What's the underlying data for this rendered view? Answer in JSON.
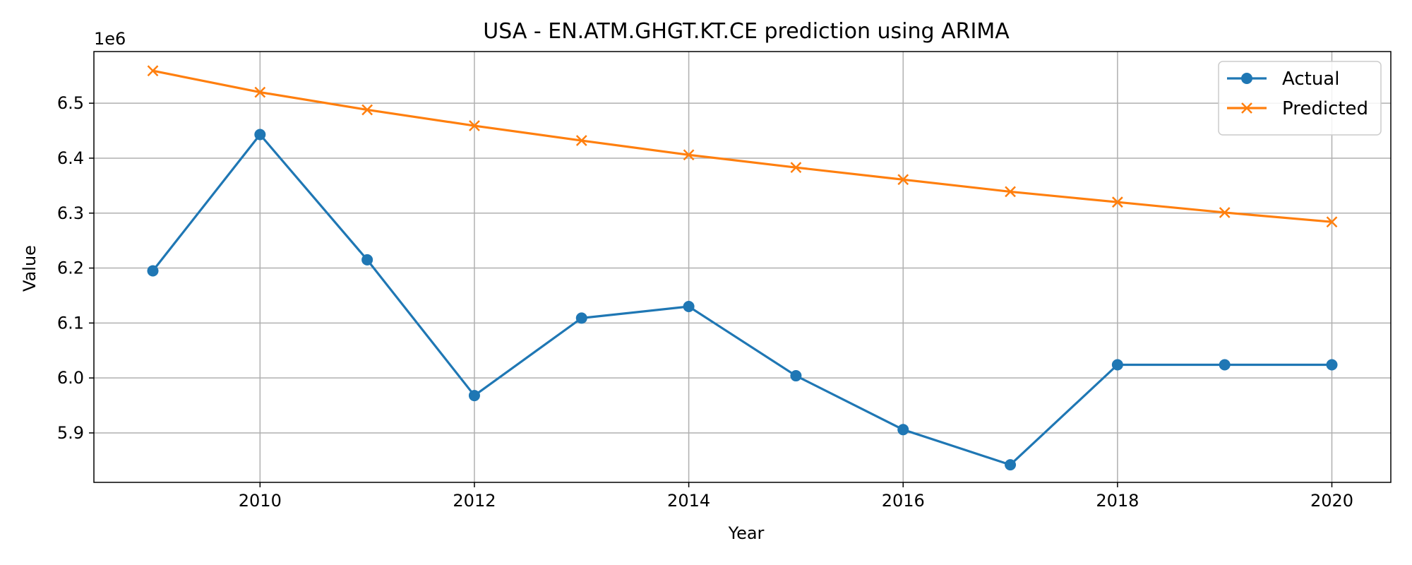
{
  "chart_data": {
    "type": "line",
    "title": "USA - EN.ATM.GHGT.KT.CE prediction using ARIMA",
    "xlabel": "Year",
    "ylabel": "Value",
    "y_offset_label": "1e6",
    "x": [
      2009,
      2010,
      2011,
      2012,
      2013,
      2014,
      2015,
      2016,
      2017,
      2018,
      2019,
      2020
    ],
    "series": [
      {
        "name": "Actual",
        "color": "#1f77b4",
        "marker": "circle",
        "values": [
          6.195,
          6.443,
          6.215,
          5.968,
          6.109,
          6.13,
          6.004,
          5.906,
          5.842,
          6.024,
          6.024,
          6.024
        ]
      },
      {
        "name": "Predicted",
        "color": "#ff7f0e",
        "marker": "x",
        "values": [
          6.559,
          6.52,
          6.488,
          6.459,
          6.432,
          6.406,
          6.383,
          6.361,
          6.339,
          6.32,
          6.301,
          6.284
        ]
      }
    ],
    "xlim": [
      2008.45,
      2020.55
    ],
    "ylim": [
      5.81,
      6.594
    ],
    "x_ticks": [
      2010,
      2012,
      2014,
      2016,
      2018,
      2020
    ],
    "y_ticks": [
      5.9,
      6.0,
      6.1,
      6.2,
      6.3,
      6.4,
      6.5
    ],
    "y_tick_labels": [
      "5.9",
      "6.0",
      "6.1",
      "6.2",
      "6.3",
      "6.4",
      "6.5"
    ],
    "grid": true,
    "legend_position": "top-right"
  }
}
